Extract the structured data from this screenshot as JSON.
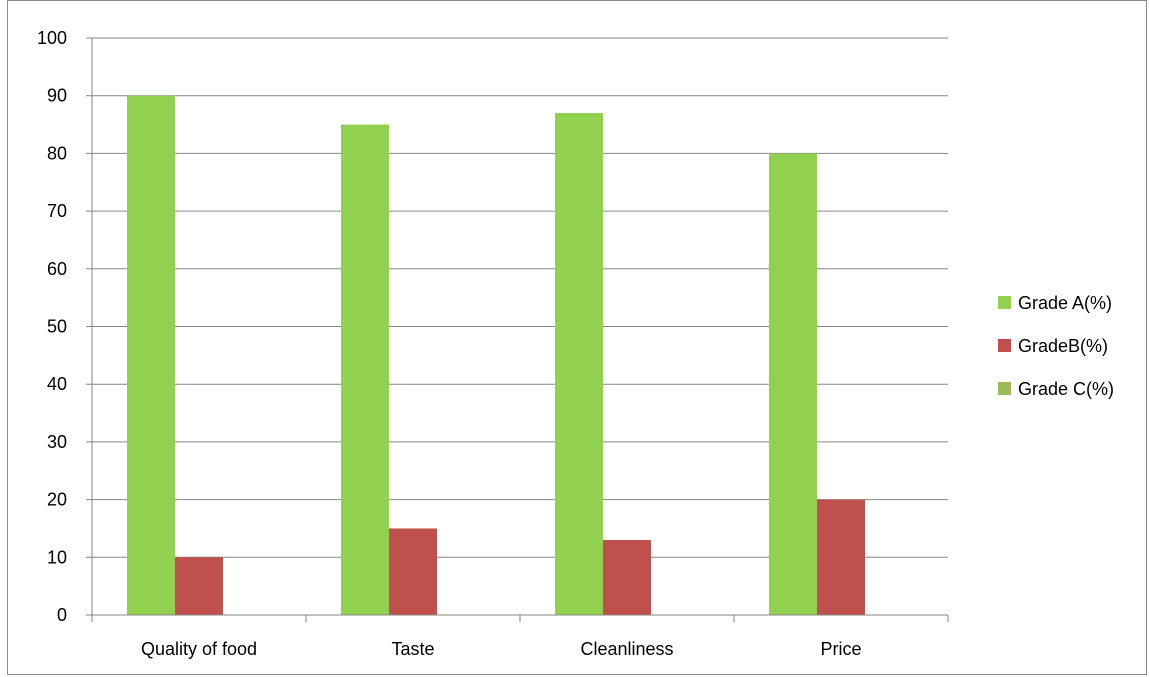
{
  "chart_data": {
    "type": "bar",
    "title": "",
    "xlabel": "",
    "ylabel": "",
    "categories": [
      "Quality of food",
      "Taste",
      "Cleanliness",
      "Price"
    ],
    "series": [
      {
        "name": "Grade A(%)",
        "color": "#92d050",
        "values": [
          90,
          85,
          87,
          80
        ]
      },
      {
        "name": "GradeB(%)",
        "color": "#c0504d",
        "values": [
          10,
          15,
          13,
          20
        ]
      },
      {
        "name": "Grade C(%)",
        "color": "#9bbb59",
        "values": [
          0,
          0,
          0,
          0
        ]
      }
    ],
    "ylim": [
      0,
      100
    ],
    "yticks": [
      0,
      10,
      20,
      30,
      40,
      50,
      60,
      70,
      80,
      90,
      100
    ],
    "grid": true,
    "legend_position": "right"
  }
}
